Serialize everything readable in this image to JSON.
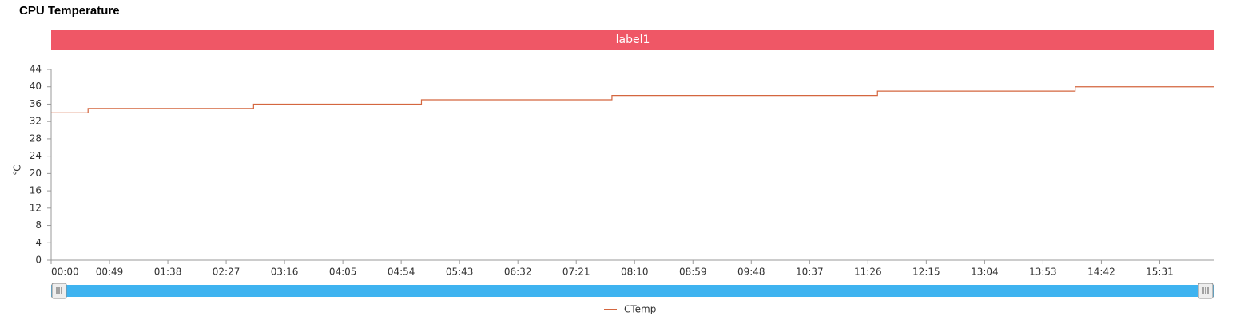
{
  "chart_data": {
    "type": "line",
    "title": "CPU Temperature",
    "banner": "label1",
    "banner_color": "#ef5766",
    "y_label": "℃",
    "x": [
      0,
      31,
      31,
      170,
      170,
      311,
      311,
      471,
      471,
      694,
      694,
      860,
      860,
      977
    ],
    "series": [
      {
        "name": "CTemp",
        "color": "#d4663f",
        "values": [
          34,
          34,
          35,
          35,
          36,
          36,
          37,
          37,
          38,
          38,
          39,
          39,
          40,
          40
        ]
      }
    ],
    "xlim": [
      0,
      977
    ],
    "xticks": [
      {
        "value": 0,
        "label": "00:00"
      },
      {
        "value": 49,
        "label": "00:49"
      },
      {
        "value": 98,
        "label": "01:38"
      },
      {
        "value": 147,
        "label": "02:27"
      },
      {
        "value": 196,
        "label": "03:16"
      },
      {
        "value": 245,
        "label": "04:05"
      },
      {
        "value": 294,
        "label": "04:54"
      },
      {
        "value": 343,
        "label": "05:43"
      },
      {
        "value": 392,
        "label": "06:32"
      },
      {
        "value": 441,
        "label": "07:21"
      },
      {
        "value": 490,
        "label": "08:10"
      },
      {
        "value": 539,
        "label": "08:59"
      },
      {
        "value": 588,
        "label": "09:48"
      },
      {
        "value": 637,
        "label": "10:37"
      },
      {
        "value": 686,
        "label": "11:26"
      },
      {
        "value": 735,
        "label": "12:15"
      },
      {
        "value": 784,
        "label": "13:04"
      },
      {
        "value": 833,
        "label": "13:53"
      },
      {
        "value": 882,
        "label": "14:42"
      },
      {
        "value": 931,
        "label": "15:31"
      }
    ],
    "ylim": [
      0,
      44
    ],
    "yticks": [
      0,
      4,
      8,
      12,
      16,
      20,
      24,
      28,
      32,
      36,
      40,
      44
    ]
  }
}
